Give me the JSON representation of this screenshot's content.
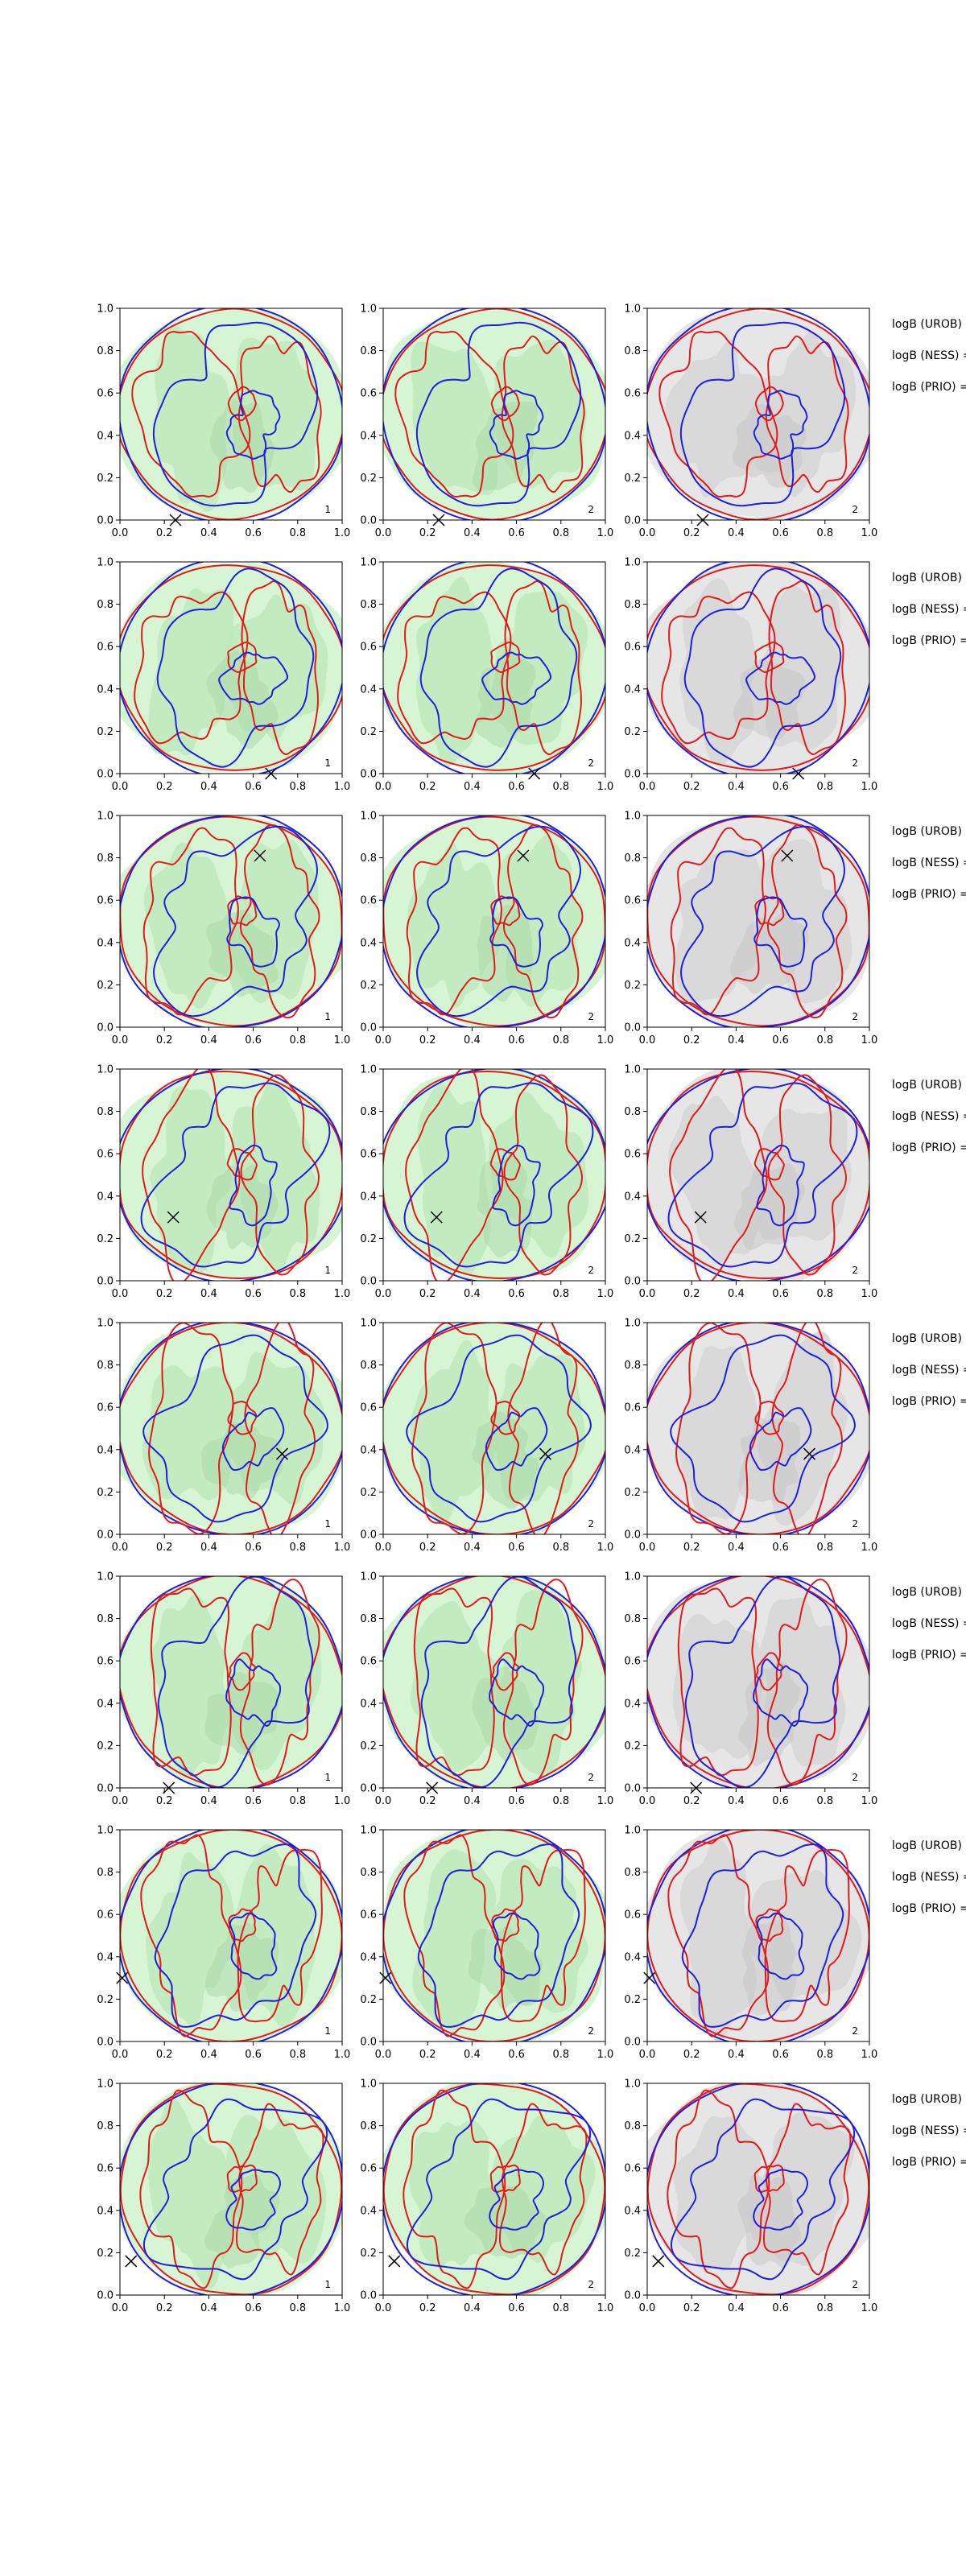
{
  "colors": {
    "green_light": "#d5f5d3",
    "green_mid": "#c0e9bc",
    "green_dark": "#a9d7a5",
    "gray_light": "#e6e6e6",
    "gray_mid": "#d6d6d6",
    "gray_dark": "#c6c6c6",
    "red_contour": "#e31a1c",
    "blue_contour": "#1f1fe0",
    "marker": "#000000"
  },
  "chart_data": {
    "type": "contour",
    "layout": {
      "rows": 8,
      "cols": 3
    },
    "axes": {
      "xlim": [
        0,
        1
      ],
      "ylim": [
        0,
        1
      ],
      "xticks": [
        "0.0",
        "0.2",
        "0.4",
        "0.6",
        "0.8",
        "1.0"
      ],
      "yticks": [
        "0.0",
        "0.2",
        "0.4",
        "0.6",
        "0.8",
        "1.0"
      ]
    },
    "column_labels": [
      "1",
      "2",
      "2"
    ],
    "rows": [
      {
        "marker": [
          0.25,
          0.0
        ],
        "seed": 3,
        "annotations": [
          "logB (UROB) =",
          "logB (NESS) =",
          "logB (PRIO) ="
        ]
      },
      {
        "marker": [
          0.68,
          0.0
        ],
        "seed": 11,
        "annotations": [
          "logB (UROB) =",
          "logB (NESS) =",
          "logB (PRIO) ="
        ]
      },
      {
        "marker": [
          0.63,
          0.81
        ],
        "seed": 19,
        "annotations": [
          "logB (UROB) =",
          "logB (NESS) =",
          "logB (PRIO) ="
        ]
      },
      {
        "marker": [
          0.24,
          0.3
        ],
        "seed": 27,
        "annotations": [
          "logB (UROB) =",
          "logB (NESS) =",
          "logB (PRIO) ="
        ]
      },
      {
        "marker": [
          0.73,
          0.38
        ],
        "seed": 35,
        "annotations": [
          "logB (UROB) =",
          "logB (NESS) =",
          "logB (PRIO) ="
        ]
      },
      {
        "marker": [
          0.22,
          0.0
        ],
        "seed": 43,
        "annotations": [
          "logB (UROB) =",
          "logB (NESS) =",
          "logB (PRIO) ="
        ]
      },
      {
        "marker": [
          0.01,
          0.3
        ],
        "seed": 51,
        "annotations": [
          "logB (UROB) =",
          "logB (NESS) =",
          "logB (PRIO) ="
        ]
      },
      {
        "marker": [
          0.05,
          0.16
        ],
        "seed": 59,
        "annotations": [
          "logB (UROB) =",
          "logB (NESS) =",
          "logB (PRIO) ="
        ]
      }
    ]
  }
}
